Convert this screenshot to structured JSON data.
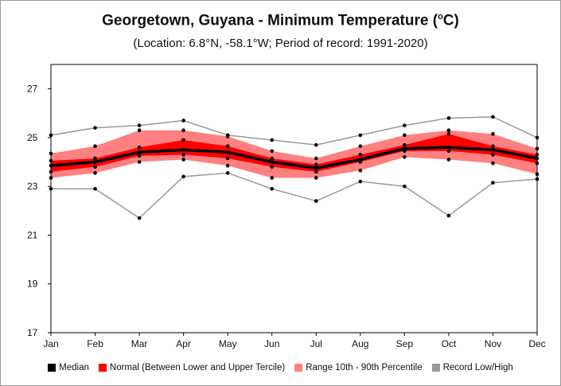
{
  "title": "Georgetown, Guyana - Minimum Temperature (",
  "title_sup": "o",
  "title_end": "C)",
  "subtitle": "(Location: 6.8°N, -58.1°W; Period of record: 1991-2020)",
  "colors": {
    "median": "#000000",
    "normal": "#ff0000",
    "range": "#ff8080",
    "record": "#999999"
  },
  "chart_data": {
    "type": "line",
    "categories": [
      "Jan",
      "Feb",
      "Mar",
      "Apr",
      "May",
      "Jun",
      "Jul",
      "Aug",
      "Sep",
      "Oct",
      "Nov",
      "Dec"
    ],
    "ylim": [
      17,
      28
    ],
    "yticks": [
      17,
      19,
      21,
      23,
      25,
      27
    ],
    "series": [
      {
        "name": "Record Low/High",
        "role": "record_high",
        "values": [
          25.1,
          25.4,
          25.5,
          25.7,
          25.1,
          24.9,
          24.7,
          25.1,
          25.5,
          25.8,
          25.85,
          25.0
        ]
      },
      {
        "name": "Record Low/High",
        "role": "record_low",
        "values": [
          22.9,
          22.9,
          21.7,
          23.4,
          23.55,
          22.9,
          22.4,
          23.2,
          23.0,
          21.8,
          23.15,
          23.3
        ]
      },
      {
        "name": "Range 10th - 90th Percentile",
        "role": "p90",
        "values": [
          24.35,
          24.65,
          25.3,
          25.3,
          25.05,
          24.45,
          24.15,
          24.65,
          25.1,
          25.3,
          25.15,
          24.55
        ]
      },
      {
        "name": "Range 10th - 90th Percentile",
        "role": "p10",
        "values": [
          23.35,
          23.55,
          24.0,
          24.1,
          23.85,
          23.35,
          23.35,
          23.65,
          24.2,
          24.1,
          23.95,
          23.5
        ]
      },
      {
        "name": "Normal (Between Lower and Upper Tercile)",
        "role": "upper_tercile",
        "values": [
          24.05,
          24.15,
          24.6,
          24.9,
          24.65,
          24.15,
          23.9,
          24.3,
          24.7,
          25.15,
          24.65,
          24.3
        ]
      },
      {
        "name": "Normal (Between Lower and Upper Tercile)",
        "role": "lower_tercile",
        "values": [
          23.6,
          23.8,
          24.25,
          24.3,
          24.15,
          23.8,
          23.6,
          24.0,
          24.45,
          24.45,
          24.3,
          23.95
        ]
      },
      {
        "name": "Median",
        "role": "median",
        "values": [
          23.85,
          24.0,
          24.4,
          24.5,
          24.4,
          24.0,
          23.75,
          24.1,
          24.55,
          24.6,
          24.5,
          24.15
        ]
      }
    ],
    "legend": [
      {
        "label": "Median",
        "color": "#000000"
      },
      {
        "label": "Normal (Between Lower and Upper Tercile)",
        "color": "#ff0000"
      },
      {
        "label": "Range 10th - 90th Percentile",
        "color": "#ff8080"
      },
      {
        "label": "Record Low/High",
        "color": "#999999"
      }
    ],
    "legend_position": "bottom",
    "grid": false
  }
}
